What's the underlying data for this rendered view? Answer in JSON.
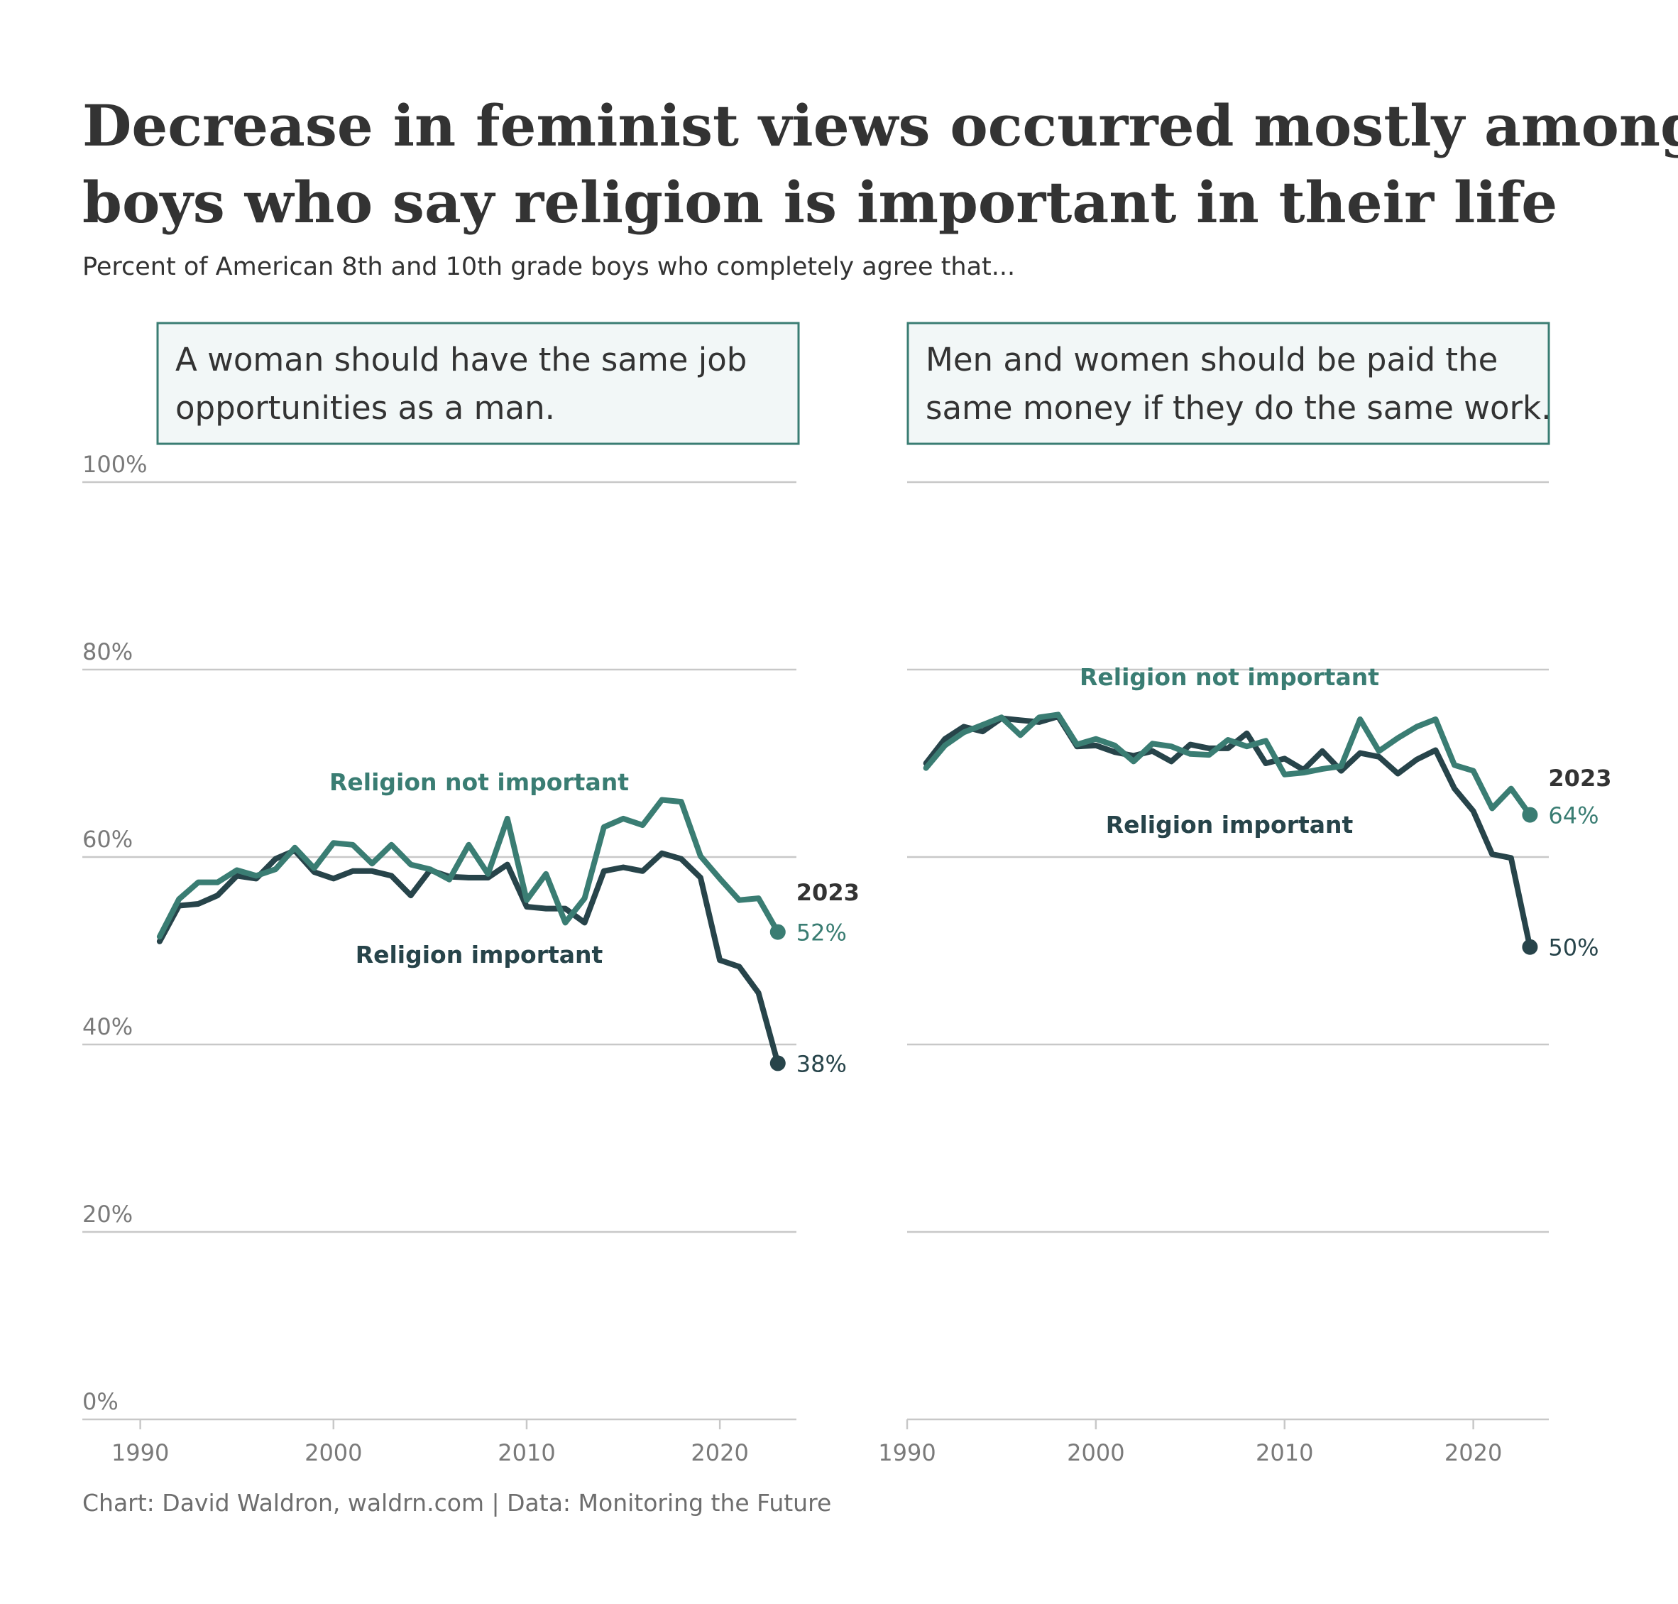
{
  "title_line1": "Decrease in feminist views occurred mostly among",
  "title_line2": "boys who say religion is important in their life",
  "subtitle": "Percent of American 8th and 10th grade boys who completely agree that...",
  "caption": "Chart: David Waldron, waldrn.com | Data: Monitoring the Future",
  "colors": {
    "not_important": "#3a7d73",
    "important": "#27444a",
    "grid": "#c8c8c8",
    "box_fill": "#f2f7f7",
    "box_stroke": "#3a7d73"
  },
  "chart_data": [
    {
      "type": "line",
      "title_lines": [
        "A woman should have the same job",
        "opportunities as a man."
      ],
      "xlim": [
        1987,
        2024
      ],
      "ylim": [
        0,
        100
      ],
      "x_ticks": [
        1990,
        2000,
        2010,
        2020
      ],
      "x_tick_labels": [
        "1990",
        "2000",
        "2010",
        "2020"
      ],
      "y_ticks": [
        0,
        20,
        40,
        60,
        80,
        100
      ],
      "y_tick_labels": [
        "0%",
        "20%",
        "40%",
        "60%",
        "80%",
        "100%"
      ],
      "end_year_label": "2023",
      "x": [
        1991,
        1992,
        1993,
        1994,
        1995,
        1996,
        1997,
        1998,
        1999,
        2000,
        2001,
        2002,
        2003,
        2004,
        2005,
        2006,
        2007,
        2008,
        2009,
        2010,
        2011,
        2012,
        2013,
        2014,
        2015,
        2016,
        2017,
        2018,
        2019,
        2020,
        2021,
        2022,
        2023
      ],
      "series": [
        {
          "name": "Religion not important",
          "key": "not_important",
          "values": [
            51.5,
            55.5,
            57.3,
            57.3,
            58.6,
            58.0,
            58.7,
            61.0,
            58.8,
            61.5,
            61.3,
            59.3,
            61.3,
            59.2,
            58.7,
            57.6,
            61.3,
            58.2,
            64.1,
            55.4,
            58.2,
            53.0,
            55.6,
            63.2,
            64.1,
            63.4,
            66.1,
            65.9,
            60.1,
            57.7,
            55.4,
            55.6,
            52.0
          ],
          "end_label": "52%"
        },
        {
          "name": "Religion important",
          "key": "important",
          "values": [
            51.0,
            54.8,
            55.0,
            55.9,
            58.0,
            57.7,
            59.8,
            60.7,
            58.4,
            57.7,
            58.5,
            58.5,
            58.0,
            55.9,
            58.6,
            57.9,
            57.8,
            57.8,
            59.2,
            54.7,
            54.5,
            54.5,
            53.0,
            58.5,
            58.9,
            58.5,
            60.4,
            59.8,
            57.8,
            49.0,
            48.3,
            45.5,
            38.0
          ],
          "end_label": "38%"
        }
      ]
    },
    {
      "type": "line",
      "title_lines": [
        "Men and women should be paid the",
        "same money if they do the same work."
      ],
      "xlim": [
        1990,
        2024
      ],
      "ylim": [
        0,
        100
      ],
      "x_ticks": [
        1990,
        2000,
        2010,
        2020
      ],
      "x_tick_labels": [
        "1990",
        "2000",
        "2010",
        "2020"
      ],
      "y_ticks": [
        0,
        20,
        40,
        60,
        80,
        100
      ],
      "end_year_label": "2023",
      "x": [
        1991,
        1992,
        1993,
        1994,
        1995,
        1996,
        1997,
        1998,
        1999,
        2000,
        2001,
        2002,
        2003,
        2004,
        2005,
        2006,
        2007,
        2008,
        2009,
        2010,
        2011,
        2012,
        2013,
        2014,
        2015,
        2016,
        2017,
        2018,
        2019,
        2020,
        2021,
        2022,
        2023
      ],
      "series": [
        {
          "name": "Religion not important",
          "key": "not_important",
          "values": [
            69.5,
            71.9,
            73.3,
            74.1,
            74.9,
            73.0,
            74.9,
            75.2,
            72.0,
            72.6,
            71.9,
            70.2,
            72.1,
            71.8,
            71.0,
            70.9,
            72.5,
            71.8,
            72.4,
            68.8,
            69.0,
            69.4,
            69.7,
            74.7,
            71.3,
            72.7,
            73.9,
            74.7,
            69.8,
            69.2,
            65.2,
            67.3,
            64.5
          ],
          "end_label": "64%"
        },
        {
          "name": "Religion important",
          "key": "important",
          "values": [
            70.0,
            72.6,
            73.9,
            73.4,
            74.8,
            74.6,
            74.4,
            75.0,
            71.8,
            71.9,
            71.2,
            70.8,
            71.3,
            70.2,
            72.0,
            71.6,
            71.6,
            73.2,
            70.0,
            70.5,
            69.3,
            71.3,
            69.2,
            71.1,
            70.7,
            68.9,
            70.4,
            71.4,
            67.3,
            64.9,
            60.3,
            59.9,
            50.4
          ],
          "end_label": "50%"
        }
      ]
    }
  ]
}
